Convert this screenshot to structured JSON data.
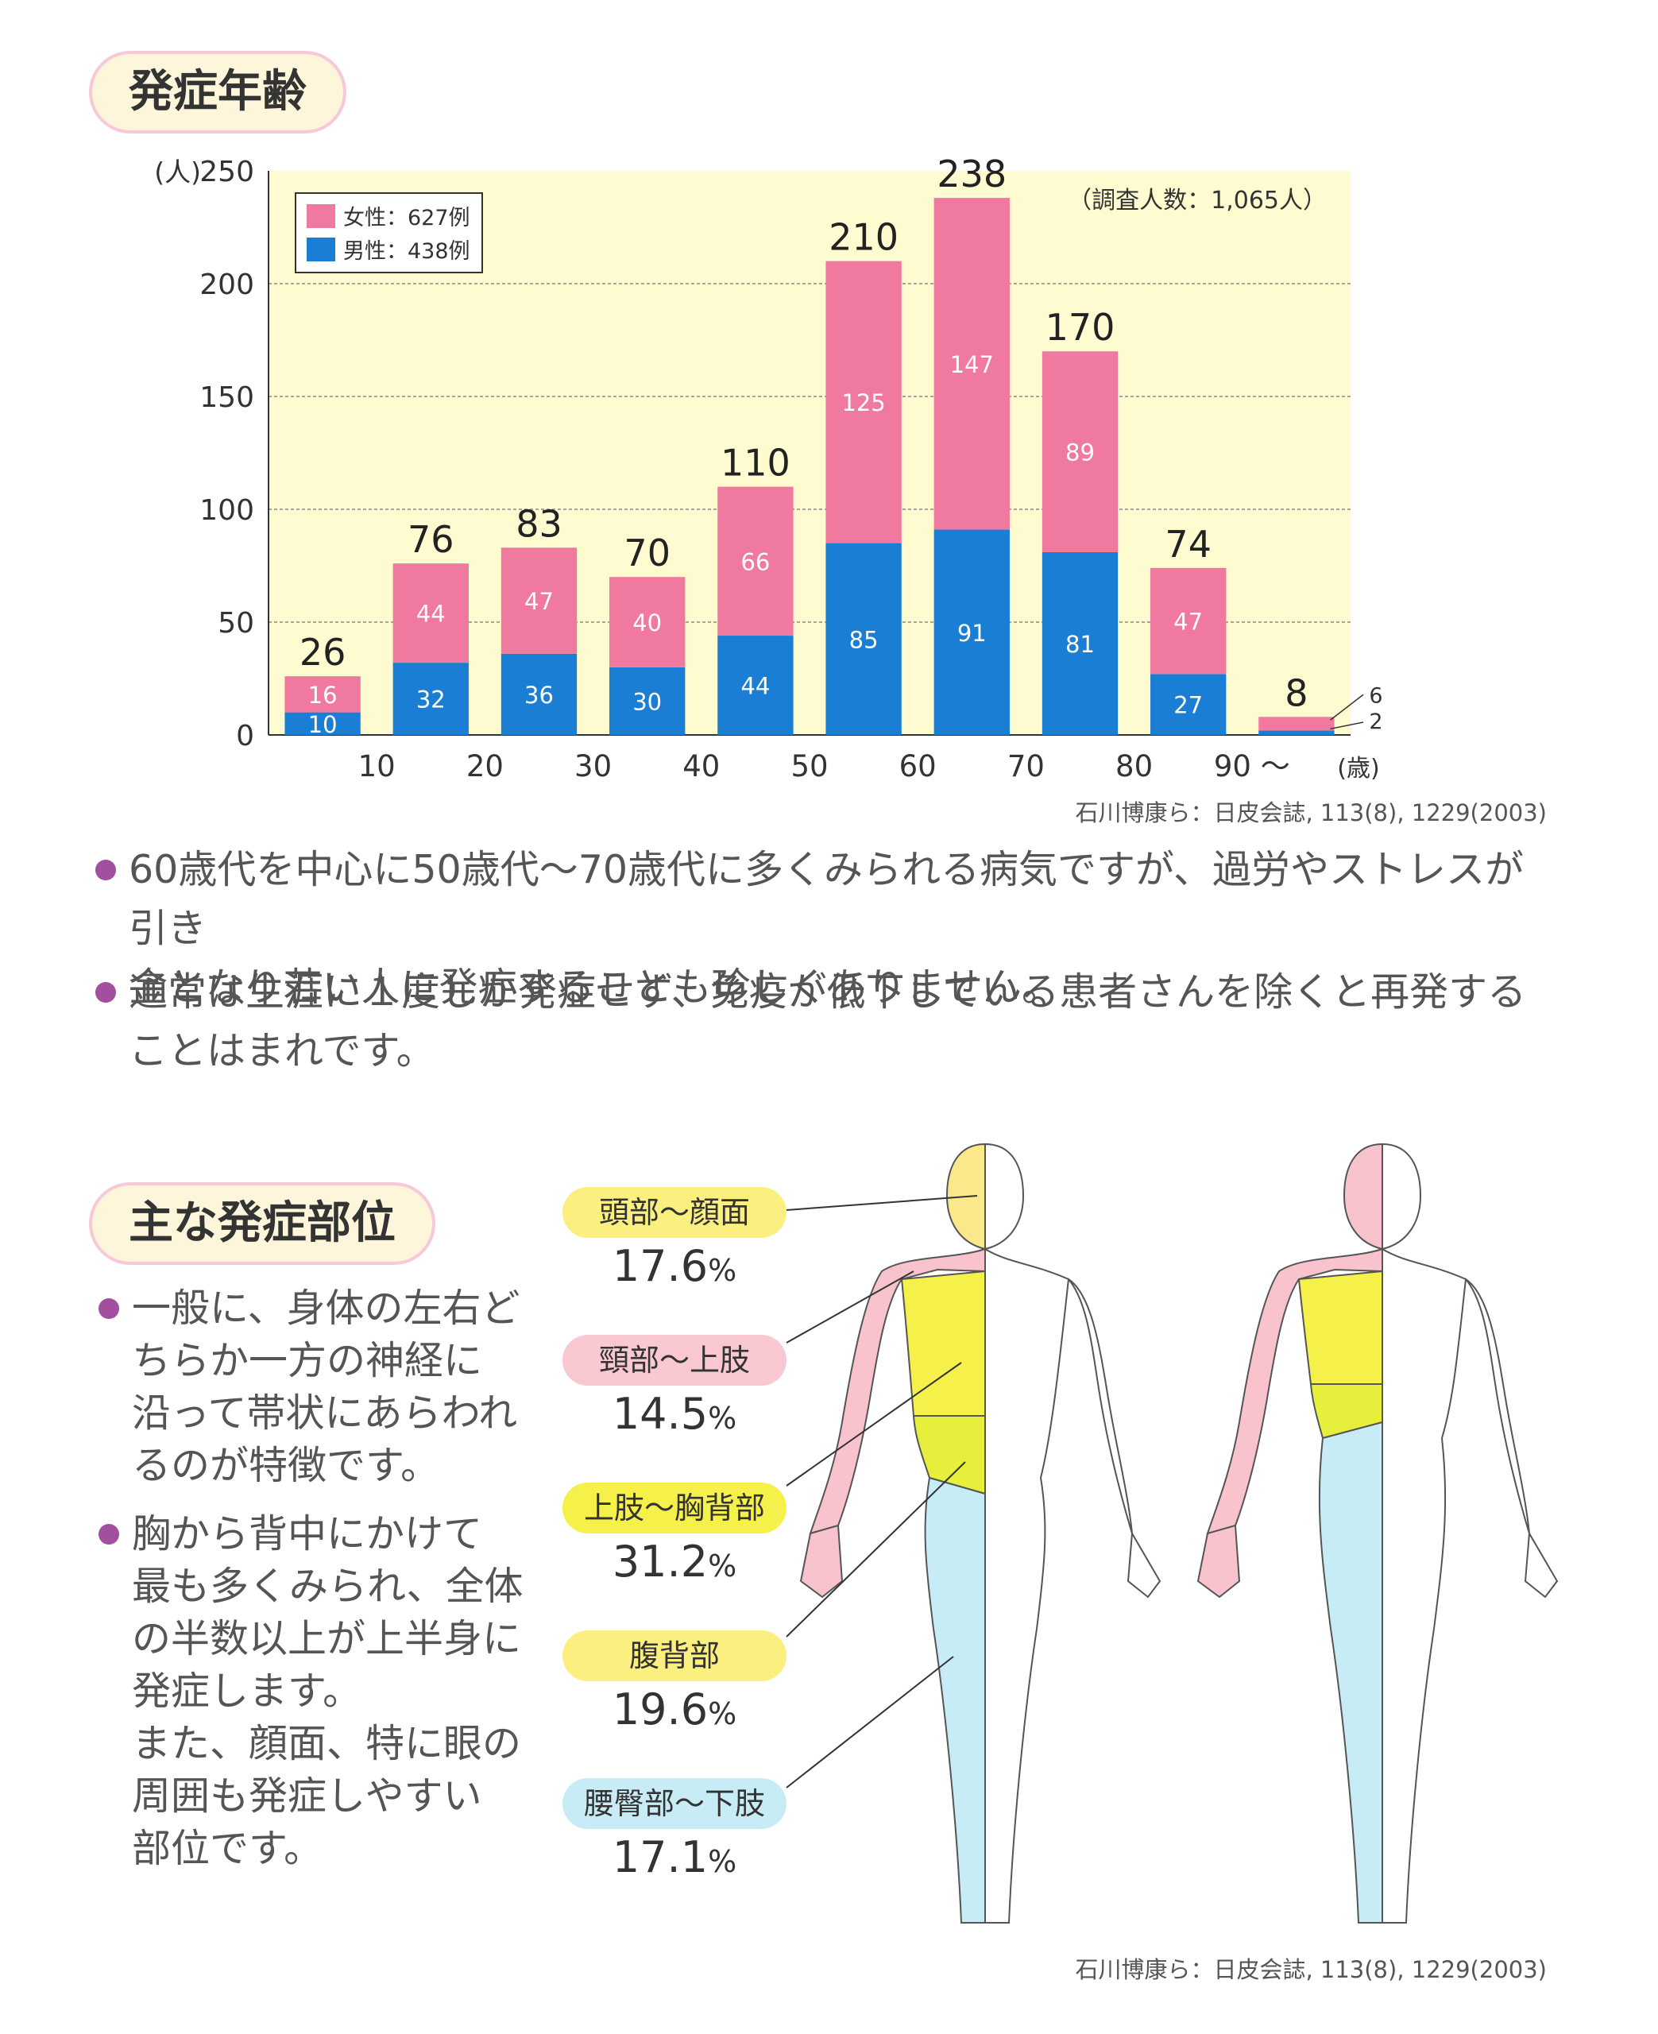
{
  "section1": {
    "title": "発症年齢"
  },
  "section2": {
    "title": "主な発症部位"
  },
  "chart_data": {
    "type": "bar",
    "y_unit_label": "(人)",
    "x_unit_label": "(歳)",
    "ylim": [
      0,
      250
    ],
    "yticks": [
      0,
      50,
      100,
      150,
      200,
      250
    ],
    "xticks": [
      "10",
      "20",
      "30",
      "40",
      "50",
      "60",
      "70",
      "80",
      "90 〜"
    ],
    "note": "（調査人数：1,065人）",
    "legend": [
      "女性：627例",
      "男性：438例"
    ],
    "series": [
      {
        "name": "男性：438例",
        "color": "#1a7fd4",
        "values": [
          10,
          32,
          36,
          30,
          44,
          85,
          91,
          81,
          27,
          2
        ]
      },
      {
        "name": "女性：627例",
        "color": "#f0799f",
        "values": [
          16,
          44,
          47,
          40,
          66,
          125,
          147,
          89,
          47,
          6
        ]
      }
    ],
    "totals": [
      26,
      76,
      83,
      70,
      110,
      210,
      238,
      170,
      74,
      8
    ],
    "grid": true,
    "legend_position": "top-left"
  },
  "cite1": "石川博康ら：日皮会誌, 113(8), 1229(2003)",
  "cite2": "石川博康ら：日皮会誌, 113(8), 1229(2003)",
  "bullets1": [
    {
      "line1": "60歳代を中心に50歳代〜70歳代に多くみられる病気ですが、過労やストレスが引き",
      "line2": "金となり若い人に発症することも珍しくありません。"
    },
    {
      "line1": "通常は生涯に１度しか発症せず、免疫が低下している患者さんを除くと再発する",
      "line2": "ことはまれです。"
    }
  ],
  "bullets2": [
    {
      "lines": [
        "一般に、身体の左右ど",
        "ちらか一方の神経に",
        "沿って帯状にあらわれ",
        "るのが特徴です。"
      ]
    },
    {
      "lines": [
        "胸から背中にかけて",
        "最も多くみられ、全体",
        "の半数以上が上半身に",
        "発症します。",
        "また、顔面、特に眼の",
        "周囲も発症しやすい",
        "部位です。"
      ]
    }
  ],
  "body_regions": [
    {
      "label": "頭部〜顔面",
      "pct": "17.6",
      "unit": "%",
      "color": "#fbf07f"
    },
    {
      "label": "頸部〜上肢",
      "pct": "14.5",
      "unit": "%",
      "color": "#f9c8d1"
    },
    {
      "label": "上肢〜胸背部",
      "pct": "31.2",
      "unit": "%",
      "color": "#f5f04a"
    },
    {
      "label": "腹背部",
      "pct": "19.6",
      "unit": "%",
      "color": "#fbf07f"
    },
    {
      "label": "腰臀部〜下肢",
      "pct": "17.1",
      "unit": "%",
      "color": "#c8ecf6"
    }
  ]
}
